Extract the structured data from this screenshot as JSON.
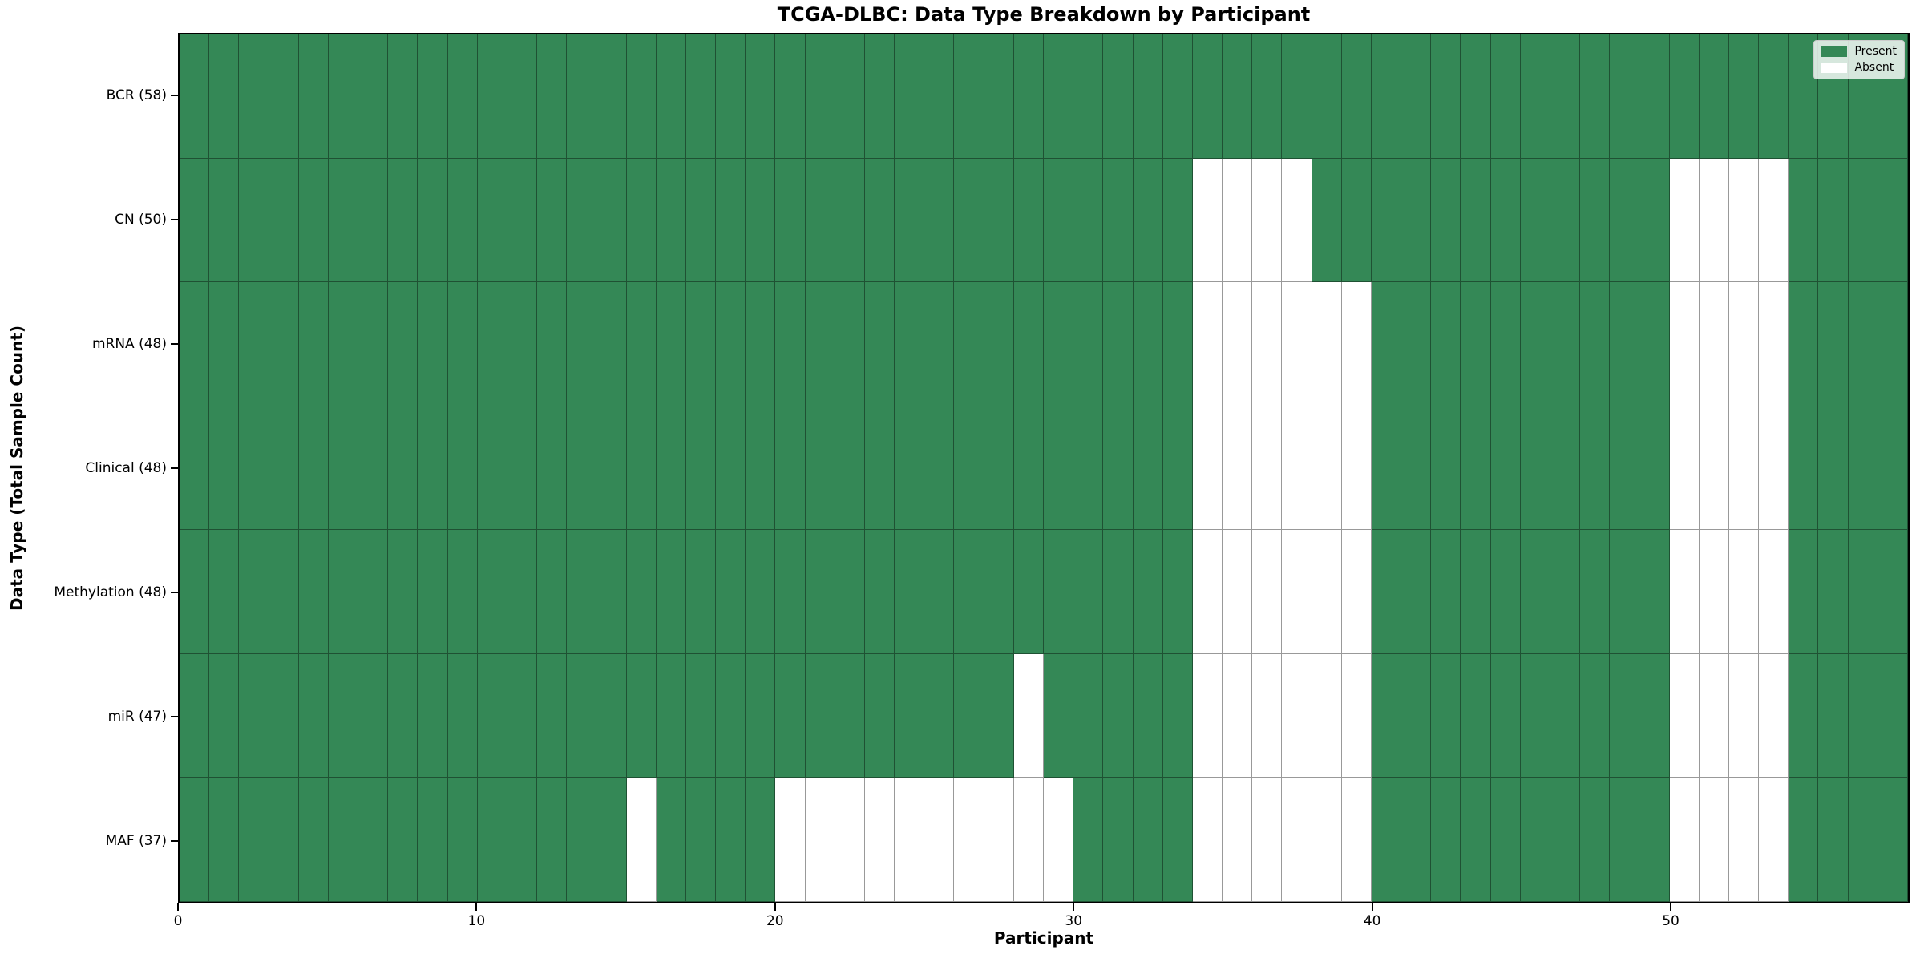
{
  "page": {
    "background": "#ffffff"
  },
  "chart_data": {
    "type": "heatmap",
    "title": "TCGA-DLBC: Data Type Breakdown by Participant",
    "xlabel": "Participant",
    "ylabel": "Data Type (Total Sample Count)",
    "n_participants": 58,
    "x_ticks": [
      0,
      10,
      20,
      30,
      40,
      50
    ],
    "x_range": [
      0,
      58
    ],
    "grid": true,
    "legend_position": "upper right",
    "rows": [
      {
        "label": "BCR (58)",
        "data_type": "BCR",
        "total": 58,
        "absent_participants": []
      },
      {
        "label": "CN (50)",
        "data_type": "CN",
        "total": 50,
        "absent_participants": [
          34,
          35,
          36,
          37,
          50,
          51,
          52,
          53
        ]
      },
      {
        "label": "mRNA (48)",
        "data_type": "mRNA",
        "total": 48,
        "absent_participants": [
          34,
          35,
          36,
          37,
          38,
          39,
          50,
          51,
          52,
          53
        ]
      },
      {
        "label": "Clinical (48)",
        "data_type": "Clinical",
        "total": 48,
        "absent_participants": [
          34,
          35,
          36,
          37,
          38,
          39,
          50,
          51,
          52,
          53
        ]
      },
      {
        "label": "Methylation (48)",
        "data_type": "Methylation",
        "total": 48,
        "absent_participants": [
          34,
          35,
          36,
          37,
          38,
          39,
          50,
          51,
          52,
          53
        ]
      },
      {
        "label": "miR (47)",
        "data_type": "miR",
        "total": 47,
        "absent_participants": [
          28,
          34,
          35,
          36,
          37,
          38,
          39,
          50,
          51,
          52,
          53
        ]
      },
      {
        "label": "MAF (37)",
        "data_type": "MAF",
        "total": 37,
        "absent_participants": [
          15,
          20,
          21,
          22,
          23,
          24,
          25,
          26,
          27,
          28,
          29,
          34,
          35,
          36,
          37,
          38,
          39,
          50,
          51,
          52,
          53
        ]
      }
    ],
    "legend": [
      {
        "label": "Present",
        "color": "#348856"
      },
      {
        "label": "Absent",
        "color": "#ffffff"
      }
    ],
    "colors": {
      "present": "#348856",
      "absent": "#ffffff",
      "grid_line": "rgba(0,0,0,0.4)",
      "spine": "#000000"
    }
  }
}
